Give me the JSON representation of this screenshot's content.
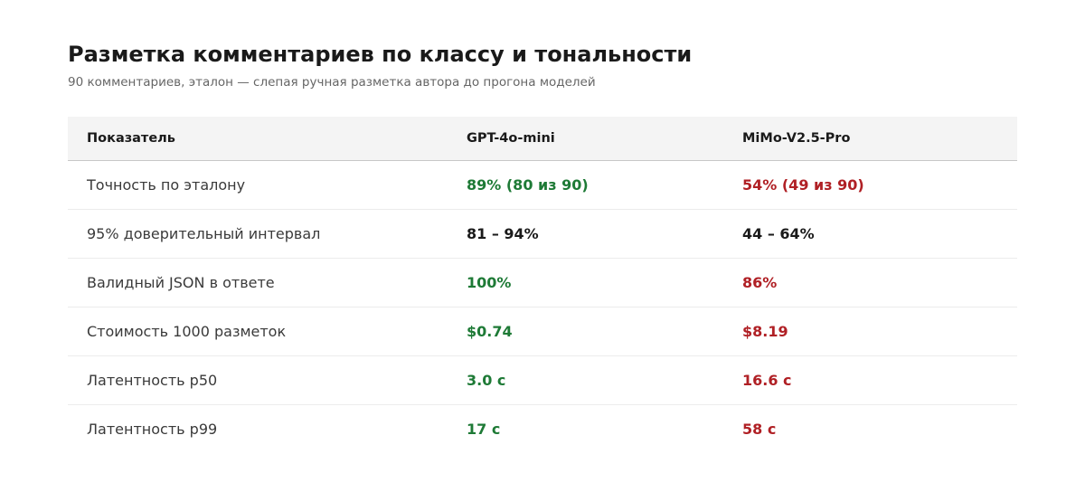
{
  "header": {
    "title": "Разметка комментариев по классу и тональности",
    "subtitle": "90 комментариев, эталон — слепая ручная разметка автора до прогона моделей"
  },
  "table": {
    "columns": [
      "Показатель",
      "GPT-4o-mini",
      "MiMo-V2.5-Pro"
    ],
    "rows": [
      {
        "metric": "Точность по эталону",
        "gpt": "89% (80 из 90)",
        "mimo": "54% (49 из 90)"
      },
      {
        "metric": "95% доверительный интервал",
        "gpt": "81 – 94%",
        "mimo": "44 – 64%"
      },
      {
        "metric": "Валидный JSON в ответе",
        "gpt": "100%",
        "mimo": "86%"
      },
      {
        "metric": "Стоимость 1000 разметок",
        "gpt": "$0.74",
        "mimo": "$8.19"
      },
      {
        "metric": "Латентность p50",
        "gpt": "3.0 с",
        "mimo": "16.6 с"
      },
      {
        "metric": "Латентность p99",
        "gpt": "17 с",
        "mimo": "58 с"
      }
    ]
  },
  "colors": {
    "better": "#1e7a36",
    "worse": "#b02025",
    "neutral": "#1a1a1a"
  }
}
